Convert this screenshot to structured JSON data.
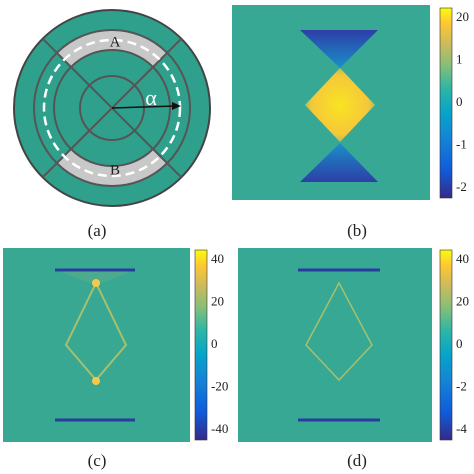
{
  "panels": [
    {
      "label": "(a)",
      "markers": [
        "A",
        "B"
      ],
      "angle_symbol": "α"
    },
    {
      "label": "(b)",
      "colorbar_ticks": [
        "20",
        "1",
        "0",
        "-1",
        "-2"
      ]
    },
    {
      "label": "(c)",
      "colorbar_ticks": [
        "40",
        "20",
        "0",
        "-20",
        "-40"
      ]
    },
    {
      "label": "(d)",
      "colorbar_ticks": [
        "40",
        "20",
        "0",
        "-2",
        "-4"
      ]
    }
  ]
}
